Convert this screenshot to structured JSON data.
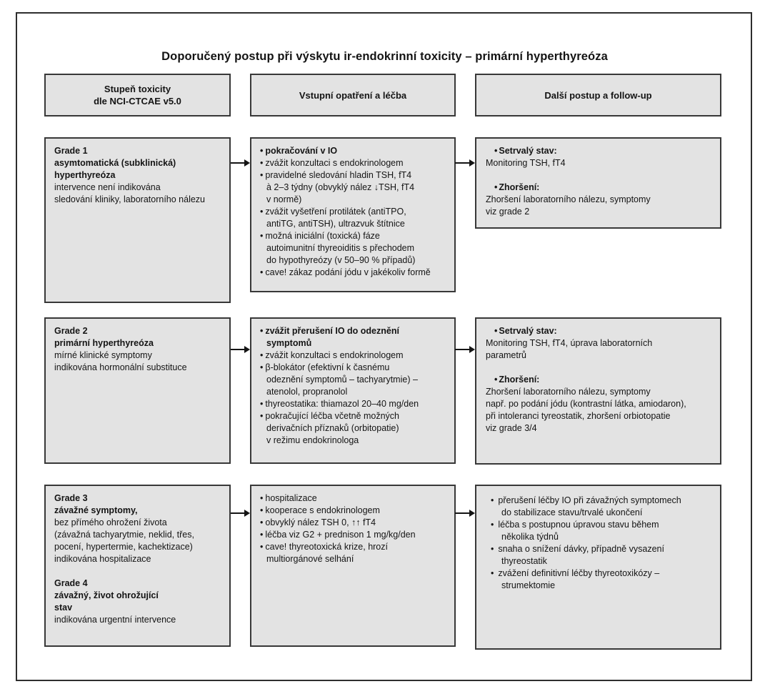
{
  "figure": {
    "title": "Doporučený postup při výskytu ir-endokrinní toxicity – primární hyperthyreóza"
  },
  "columns": [
    {
      "label": "Stupeň toxicity\ndle NCI-CTCAE v5.0"
    },
    {
      "label": "Vstupní opatření a léčba"
    },
    {
      "label": "Další postup a follow-up"
    }
  ],
  "colors": {
    "background": "#ffffff",
    "box_fill": "#e3e3e3",
    "box_border": "#383838",
    "text": "#141414",
    "arrow": "#141414"
  },
  "rows": {
    "grade1": {
      "criteria": {
        "items": [
          {
            "text": "Grade 1",
            "bold": true
          },
          {
            "text": "asymtomatická (subklinická)",
            "bold": true
          },
          {
            "text": "hyperthyreóza",
            "bold": true
          },
          {
            "text": "intervence není indikována"
          },
          {
            "text": "sledování kliniky, laboratorního nálezu"
          }
        ]
      },
      "treatment": {
        "items": [
          {
            "text": "pokračování v IO",
            "bold": true,
            "bullet": true
          },
          {
            "text": "zvážit konzultaci s endokrinologem",
            "bullet": true
          },
          {
            "text": "pravidelné sledování hladin TSH, fT4\nà 2–3 týdny (obvyklý nález ↓TSH, fT4\nv normě)",
            "bullet": true
          },
          {
            "text": "zvážit vyšetření protilátek (antiTPO,\nantiTG, antiTSH), ultrazvuk štítnice",
            "bullet": true
          },
          {
            "text": "možná iniciální (toxická) fáze\nautoimunitní thyreoiditis s přechodem\ndo hypothyreózy (v 50–90 % případů)",
            "bullet": true
          },
          {
            "text": "cave! zákaz podání jódu v jakékoliv formě",
            "bullet": true
          }
        ]
      },
      "followup": {
        "items": [
          {
            "text": "Setrvalý stav:",
            "bold": true,
            "bullet": true
          },
          {
            "text": "Monitoring TSH, fT4"
          },
          {
            "text": "Zhoršení:",
            "bold": true,
            "bullet": true,
            "gap": true
          },
          {
            "text": "Zhoršení laboratorního nálezu, symptomy\nviz grade 2"
          }
        ]
      }
    },
    "grade2": {
      "criteria": {
        "items": [
          {
            "text": "Grade 2",
            "bold": true
          },
          {
            "text": "primární hyperthyreóza",
            "bold": true
          },
          {
            "text": "mírné klinické symptomy"
          },
          {
            "text": "indikována hormonální substituce"
          }
        ]
      },
      "treatment": {
        "items": [
          {
            "text": "zvážit přerušení IO do odeznění\nsymptomů",
            "bold": true,
            "bullet": true
          },
          {
            "text": "zvážit konzultaci s endokrinologem",
            "bullet": true
          },
          {
            "text": "β-blokátor (efektivní k časnému\nodeznění symptomů – tachyarytmie) –\natenolol, propranolol",
            "bullet": true
          },
          {
            "text": "thyreostatika: thiamazol 20–40 mg/den",
            "bullet": true
          },
          {
            "text": "pokračující léčba včetně možných\nderivačních příznaků (orbitopatie)\nv režimu endokrinologa",
            "bullet": true
          }
        ]
      },
      "followup": {
        "items": [
          {
            "text": "Setrvalý stav:",
            "bold": true,
            "bullet": true
          },
          {
            "text": "Monitoring TSH, fT4, úprava laboratorních\nparametrů"
          },
          {
            "text": "Zhoršení:",
            "bold": true,
            "bullet": true,
            "gap": true
          },
          {
            "text": "Zhoršení laboratorního nálezu, symptomy\nnapř. po podání jódu (kontrastní látka, amiodaron),\npři intoleranci tyreostatik, zhoršení orbiotopatie\nviz grade 3/4"
          }
        ]
      }
    },
    "grade3_4": {
      "criteria": {
        "items": [
          {
            "text": "Grade 3",
            "bold": true
          },
          {
            "text": "závažné symptomy,",
            "bold": true
          },
          {
            "text": "bez přímého ohrožení života"
          },
          {
            "text": "(závažná tachyarytmie, neklid, třes,\npocení, hypertermie, kachektizace)"
          },
          {
            "text": "indikována hospitalizace"
          },
          {
            "text": "Grade 4",
            "bold": true,
            "gap": true
          },
          {
            "text": "závažný, život ohrožující",
            "bold": true
          },
          {
            "text": "stav",
            "bold": true
          },
          {
            "text": "indikována urgentní intervence"
          }
        ]
      },
      "treatment": {
        "items": [
          {
            "text": "hospitalizace",
            "bullet": true
          },
          {
            "text": "kooperace s endokrinologem",
            "bullet": true
          },
          {
            "text": "obvyklý nález TSH 0, ↑↑ fT4",
            "bullet": true
          },
          {
            "text": "léčba viz G2 + prednison 1 mg/kg/den",
            "bullet": true
          },
          {
            "text": "cave! thyreotoxická krize, hrozí\nmultiorgánové selhání",
            "bullet": true
          }
        ]
      },
      "followup": {
        "items": [
          {
            "text": "přerušení léčby IO při závažných symptomech\ndo stabilizace stavu/trvalé ukončení",
            "bullet": true
          },
          {
            "text": "léčba s postupnou úpravou stavu během\nněkolika týdnů",
            "bullet": true
          },
          {
            "text": "snaha o snížení dávky, případně vysazení\nthyreostatik",
            "bullet": true
          },
          {
            "text": "zvážení definitivní léčby thyreotoxikózy –\nstrumektomie",
            "bullet": true
          }
        ]
      }
    }
  }
}
